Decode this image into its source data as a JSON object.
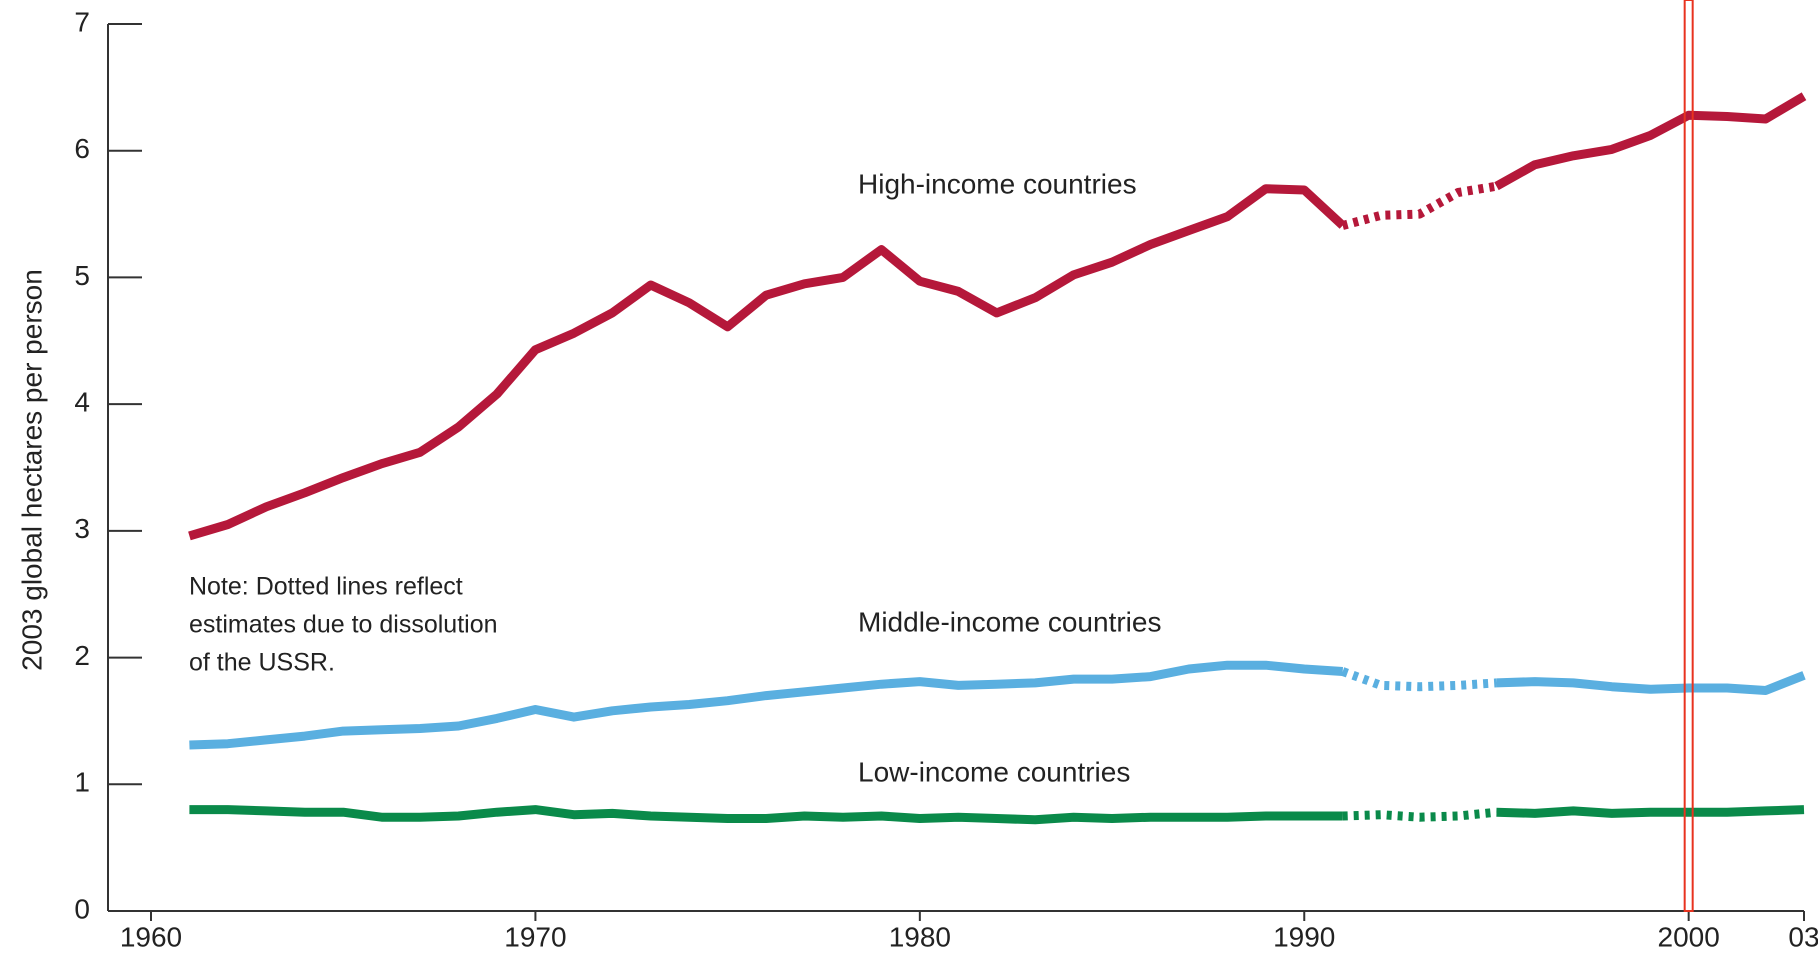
{
  "chart_data": {
    "type": "line",
    "y_label": "2003 global hectares per person",
    "x": [
      1961,
      1962,
      1963,
      1964,
      1965,
      1966,
      1967,
      1968,
      1969,
      1970,
      1971,
      1972,
      1973,
      1974,
      1975,
      1976,
      1977,
      1978,
      1979,
      1980,
      1981,
      1982,
      1983,
      1984,
      1985,
      1986,
      1987,
      1988,
      1989,
      1990,
      1991,
      1992,
      1993,
      1994,
      1995,
      1996,
      1997,
      1998,
      1999,
      2000,
      2001,
      2002,
      2003
    ],
    "series": [
      {
        "name": "High-income countries",
        "color": "#b5183a",
        "dashed_x": [
          1991,
          1995
        ],
        "values": [
          2.96,
          3.05,
          3.19,
          3.3,
          3.42,
          3.53,
          3.62,
          3.82,
          4.08,
          4.43,
          4.56,
          4.72,
          4.94,
          4.8,
          4.61,
          4.86,
          4.95,
          5.0,
          5.22,
          4.97,
          4.89,
          4.72,
          4.84,
          5.02,
          5.12,
          5.26,
          5.37,
          5.48,
          5.7,
          5.69,
          5.41,
          5.49,
          5.5,
          5.67,
          5.72,
          5.89,
          5.96,
          6.01,
          6.12,
          6.28,
          6.27,
          6.25,
          6.43
        ]
      },
      {
        "name": "Middle-income countries",
        "color": "#5aafe0",
        "dashed_x": [
          1991,
          1995
        ],
        "values": [
          1.31,
          1.32,
          1.35,
          1.38,
          1.42,
          1.43,
          1.44,
          1.46,
          1.52,
          1.59,
          1.53,
          1.58,
          1.61,
          1.63,
          1.66,
          1.7,
          1.73,
          1.76,
          1.79,
          1.81,
          1.78,
          1.79,
          1.8,
          1.83,
          1.83,
          1.85,
          1.91,
          1.94,
          1.94,
          1.91,
          1.89,
          1.78,
          1.77,
          1.78,
          1.8,
          1.81,
          1.8,
          1.77,
          1.75,
          1.76,
          1.76,
          1.74,
          1.86
        ]
      },
      {
        "name": "Low-income countries",
        "color": "#0a8a4a",
        "dashed_x": [
          1991,
          1995
        ],
        "values": [
          0.8,
          0.8,
          0.79,
          0.78,
          0.78,
          0.74,
          0.74,
          0.75,
          0.78,
          0.8,
          0.76,
          0.77,
          0.75,
          0.74,
          0.73,
          0.73,
          0.75,
          0.74,
          0.75,
          0.73,
          0.74,
          0.73,
          0.72,
          0.74,
          0.73,
          0.74,
          0.74,
          0.74,
          0.75,
          0.75,
          0.75,
          0.76,
          0.74,
          0.75,
          0.78,
          0.77,
          0.79,
          0.77,
          0.78,
          0.78,
          0.78,
          0.79,
          0.8
        ]
      }
    ],
    "marker_x": 2000,
    "marker_color": "#e8331f",
    "note": [
      "Note: Dotted lines reflect",
      "estimates due to dissolution",
      "of the USSR."
    ],
    "xlim": [
      1960,
      2003
    ],
    "xticks": [
      1960,
      1970,
      1980,
      1990,
      2000,
      {
        "value": 2003,
        "label": "03"
      }
    ],
    "ylim": [
      0,
      7
    ],
    "yticks": [
      0,
      1,
      2,
      3,
      4,
      5,
      6,
      7
    ]
  }
}
